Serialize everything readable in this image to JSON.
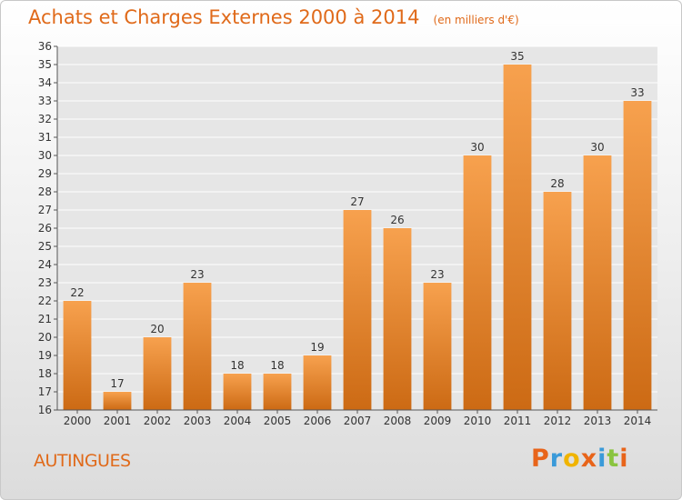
{
  "chart_data": {
    "type": "bar",
    "title": "Achats et Charges Externes 2000 à 2014",
    "unit": "(en milliers d'€)",
    "categories": [
      "2000",
      "2001",
      "2002",
      "2003",
      "2004",
      "2005",
      "2006",
      "2007",
      "2008",
      "2009",
      "2010",
      "2011",
      "2012",
      "2013",
      "2014"
    ],
    "values": [
      22,
      17,
      20,
      23,
      18,
      18,
      19,
      27,
      26,
      23,
      30,
      35,
      28,
      30,
      33
    ],
    "ylim": [
      16,
      36
    ],
    "yticks": [
      16,
      17,
      18,
      19,
      20,
      21,
      22,
      23,
      24,
      25,
      26,
      27,
      28,
      29,
      30,
      31,
      32,
      33,
      34,
      35,
      36
    ],
    "grid": true,
    "bar_color_top": "#f7a14e",
    "bar_color_bottom": "#cc6a14"
  },
  "commune": "AUTINGUES",
  "logo": {
    "letters": [
      "P",
      "r",
      "o",
      "x",
      "i",
      "t",
      "i"
    ],
    "colors": [
      "#e8641a",
      "#3a9ad9",
      "#f0b400",
      "#e8641a",
      "#3a9ad9",
      "#8ac43f",
      "#e8641a"
    ]
  }
}
